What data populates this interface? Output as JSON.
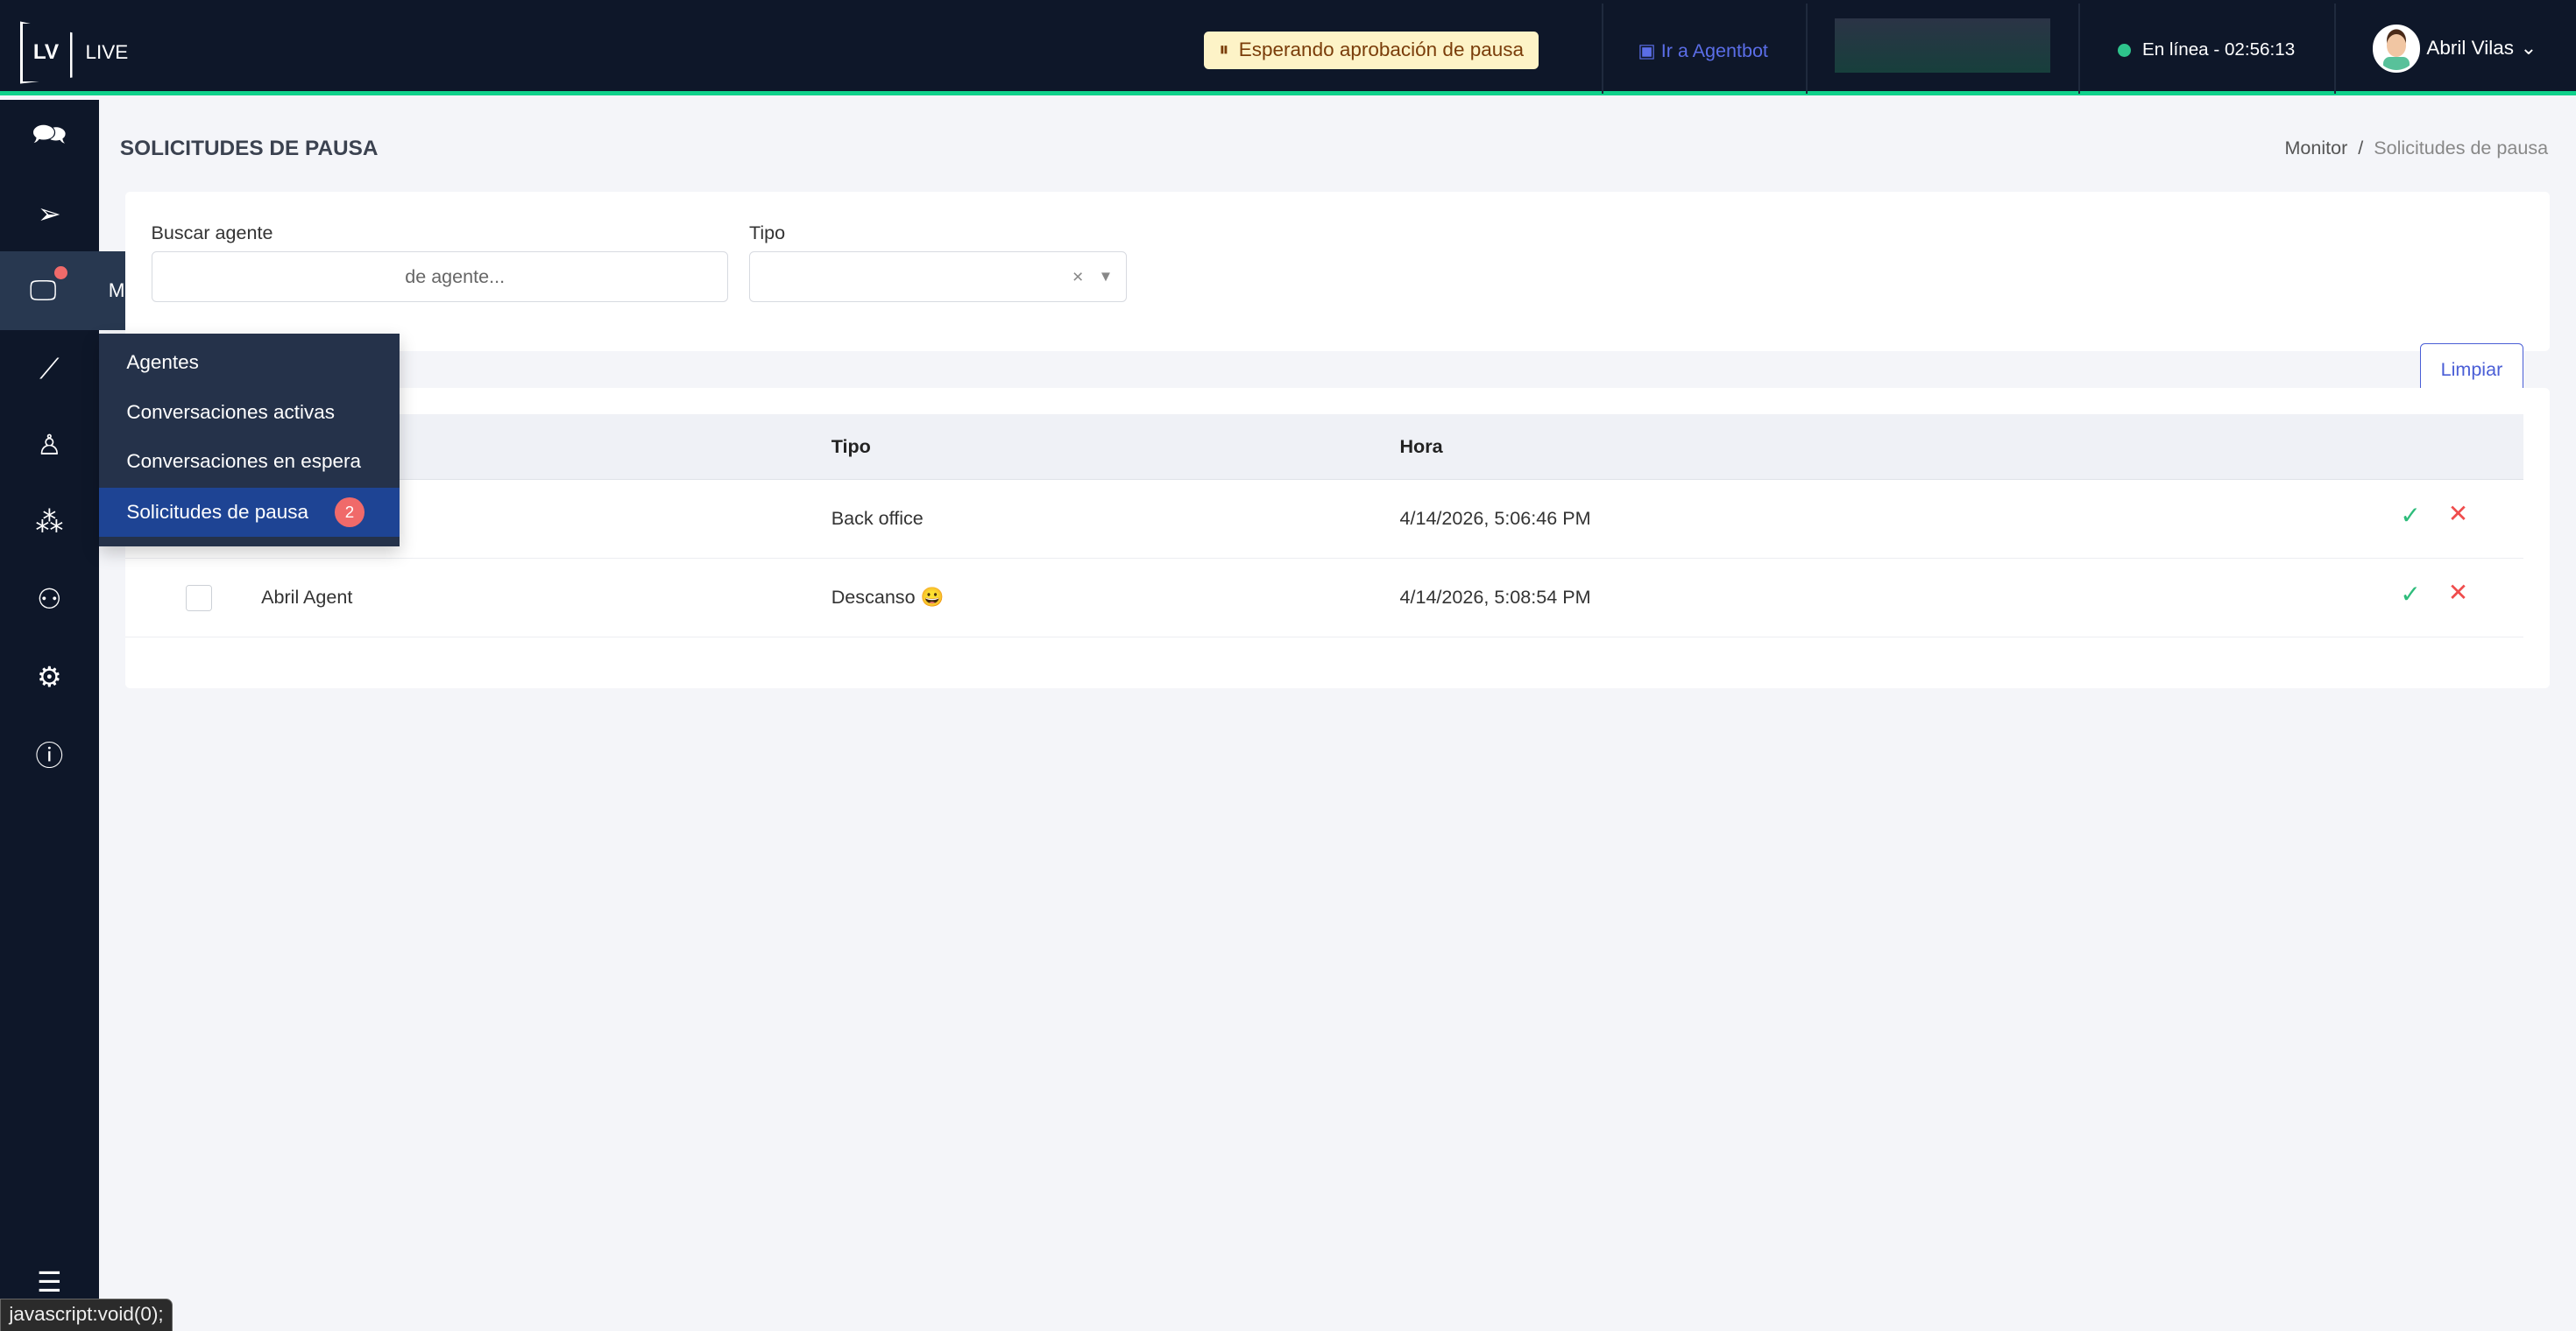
{
  "header": {
    "logo_mark": "LV",
    "logo_text": "LIVE",
    "pause_status": "Esperando aprobación de pausa",
    "agentbot_link": "Ir a Agentbot",
    "online_status": "En línea - 02:56:13",
    "user_name": "Abril Vilas",
    "accent": "#0fd18b"
  },
  "sidebar": {
    "monitor_label": "Monitor",
    "submenu": [
      {
        "label": "Agentes"
      },
      {
        "label": "Conversaciones activas"
      },
      {
        "label": "Conversaciones en espera"
      },
      {
        "label": "Solicitudes de pausa",
        "badge": "2"
      }
    ]
  },
  "page": {
    "title": "SOLICITUDES DE PAUSA",
    "breadcrumb": [
      "Monitor",
      "Solicitudes de pausa"
    ]
  },
  "filters": {
    "search_label": "Buscar agente",
    "search_placeholder": "de agente...",
    "type_label": "Tipo",
    "type_value": "",
    "clear_button": "Limpiar"
  },
  "table": {
    "headers": [
      "Tipo",
      "Hora"
    ],
    "rows": [
      {
        "agent": "",
        "type": "Back office",
        "time": "4/14/2026, 5:06:46 PM"
      },
      {
        "agent": "Abril Agent",
        "type": "Descanso 😀",
        "time": "4/14/2026, 5:08:54 PM"
      }
    ]
  },
  "statusbar": "javascript:void(0);"
}
